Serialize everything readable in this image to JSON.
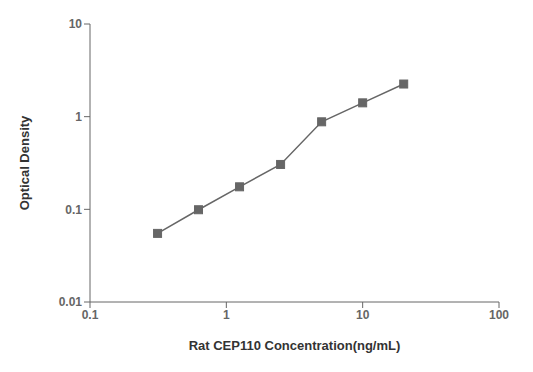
{
  "chart_data": {
    "type": "line",
    "xlabel": "Rat CEP110 Concentration(ng/mL)",
    "ylabel": "Optical Density",
    "x": [
      0.313,
      0.625,
      1.25,
      2.5,
      5.0,
      10.0,
      20.0
    ],
    "values": [
      0.055,
      0.099,
      0.175,
      0.305,
      0.88,
      1.41,
      2.25
    ],
    "xlim": [
      0.1,
      100
    ],
    "ylim": [
      0.01,
      10
    ],
    "xticks": [
      0.1,
      1,
      10,
      100
    ],
    "yticks": [
      0.01,
      0.1,
      1,
      10
    ],
    "log": true,
    "grid": false,
    "color": "#666666",
    "marker": "square"
  }
}
